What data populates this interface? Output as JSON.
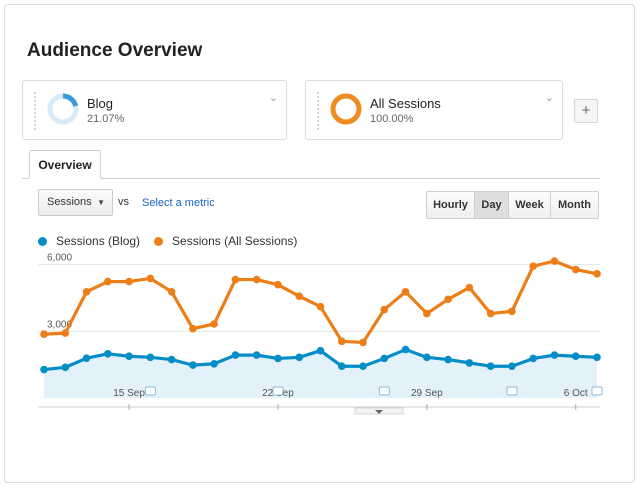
{
  "page_title": "Audience Overview",
  "segments": [
    {
      "name": "Blog",
      "percent": "21.07%",
      "share": 0.2107,
      "color": "#3b9bd6",
      "track": "#d6eaf7"
    },
    {
      "name": "All Sessions",
      "percent": "100.00%",
      "share": 1.0,
      "color": "#ef8c1f",
      "track": "#fbe2c4"
    }
  ],
  "add_segment_label": "+",
  "tabs": [
    "Overview"
  ],
  "metric_select": {
    "value": "Sessions"
  },
  "vs_label": "vs",
  "select_metric_link": "Select a metric",
  "time_ranges": [
    {
      "label": "Hourly",
      "active": false
    },
    {
      "label": "Day",
      "active": true
    },
    {
      "label": "Week",
      "active": false
    },
    {
      "label": "Month",
      "active": false
    }
  ],
  "chart_data": {
    "type": "line",
    "x": [
      "Sep 11",
      "Sep 12",
      "Sep 13",
      "Sep 14",
      "Sep 15",
      "Sep 16",
      "Sep 17",
      "Sep 18",
      "Sep 19",
      "Sep 20",
      "Sep 21",
      "Sep 22",
      "Sep 23",
      "Sep 24",
      "Sep 25",
      "Sep 26",
      "Sep 27",
      "Sep 28",
      "Sep 29",
      "Sep 30",
      "Oct 1",
      "Oct 2",
      "Oct 3",
      "Oct 4",
      "Oct 5",
      "Oct 6",
      "Oct 7"
    ],
    "x_tick_labels": [
      "15 Sep",
      "22 Sep",
      "29 Sep",
      "6 Oct"
    ],
    "y_tick_labels": [
      "6,000",
      "3,000"
    ],
    "ylim": [
      0,
      6300
    ],
    "grid": true,
    "legend_position": "top-left",
    "series": [
      {
        "name": "Sessions (Blog)",
        "color": "#058dc7",
        "values": [
          1280,
          1380,
          1790,
          1990,
          1880,
          1830,
          1730,
          1480,
          1540,
          1930,
          1930,
          1780,
          1830,
          2130,
          1430,
          1430,
          1780,
          2180,
          1830,
          1730,
          1580,
          1430,
          1430,
          1780,
          1930,
          1880,
          1830
        ]
      },
      {
        "name": "Sessions (All Sessions)",
        "color": "#ed7e17",
        "values": [
          2870,
          2920,
          4780,
          5240,
          5240,
          5380,
          4780,
          3120,
          3330,
          5330,
          5330,
          5100,
          4580,
          4110,
          2550,
          2500,
          3980,
          4780,
          3800,
          4440,
          4970,
          3800,
          3900,
          5930,
          6160,
          5780,
          5590
        ]
      }
    ]
  }
}
